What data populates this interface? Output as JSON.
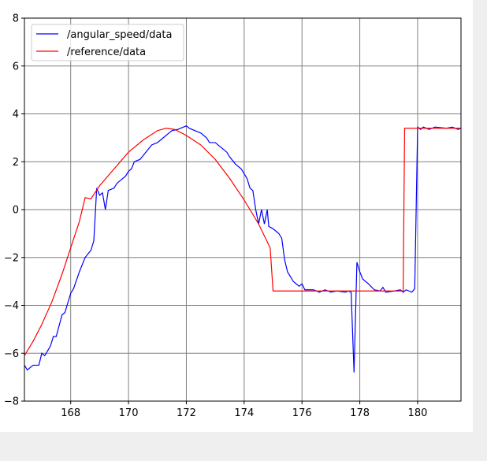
{
  "chart_data": {
    "type": "line",
    "xlim": [
      166.4,
      181.5
    ],
    "ylim": [
      -8,
      8
    ],
    "xticks": [
      168,
      170,
      172,
      174,
      176,
      178,
      180
    ],
    "yticks": [
      {
        "value": -8,
        "label": "−8"
      },
      {
        "value": -6,
        "label": "−6"
      },
      {
        "value": -4,
        "label": "−4"
      },
      {
        "value": -2,
        "label": "−2"
      },
      0,
      2,
      4,
      6,
      8
    ],
    "grid": true,
    "legend": "upper left",
    "series": [
      {
        "name": "/angular_speed/data",
        "color": "#0000ff",
        "x": [
          166.4,
          166.5,
          166.7,
          166.9,
          167.0,
          167.1,
          167.3,
          167.4,
          167.5,
          167.7,
          167.8,
          168.0,
          168.1,
          168.3,
          168.5,
          168.7,
          168.8,
          168.9,
          169.0,
          169.1,
          169.2,
          169.3,
          169.5,
          169.6,
          169.9,
          170.0,
          170.1,
          170.2,
          170.4,
          170.6,
          170.8,
          171.0,
          171.2,
          171.4,
          171.5,
          171.7,
          172.0,
          172.1,
          172.3,
          172.5,
          172.7,
          172.8,
          173.0,
          173.2,
          173.4,
          173.5,
          173.7,
          173.9,
          174.1,
          174.2,
          174.3,
          174.4,
          174.5,
          174.6,
          174.7,
          174.8,
          174.85,
          175.0,
          175.2,
          175.3,
          175.4,
          175.5,
          175.7,
          175.9,
          176.0,
          176.1,
          176.4,
          176.6,
          176.8,
          177.0,
          177.2,
          177.5,
          177.6,
          177.7,
          177.8,
          177.9,
          178.0,
          178.1,
          178.3,
          178.5,
          178.7,
          178.8,
          178.9,
          179.2,
          179.4,
          179.5,
          179.6,
          179.8,
          179.9,
          180.0,
          180.1,
          180.2,
          180.4,
          180.6,
          181.0,
          181.2,
          181.4,
          181.5
        ],
        "values": [
          -6.5,
          -6.7,
          -6.5,
          -6.5,
          -6.0,
          -6.1,
          -5.7,
          -5.3,
          -5.3,
          -4.4,
          -4.3,
          -3.5,
          -3.3,
          -2.6,
          -2.0,
          -1.7,
          -1.3,
          0.9,
          0.6,
          0.7,
          0.0,
          0.8,
          0.9,
          1.1,
          1.4,
          1.6,
          1.7,
          2.0,
          2.1,
          2.4,
          2.7,
          2.8,
          3.0,
          3.2,
          3.3,
          3.35,
          3.5,
          3.4,
          3.3,
          3.2,
          3.0,
          2.8,
          2.8,
          2.6,
          2.4,
          2.2,
          1.9,
          1.7,
          1.3,
          0.9,
          0.8,
          0.0,
          -0.6,
          0.0,
          -0.6,
          0.0,
          -0.7,
          -0.8,
          -1.0,
          -1.2,
          -2.1,
          -2.6,
          -3.0,
          -3.2,
          -3.1,
          -3.35,
          -3.35,
          -3.45,
          -3.35,
          -3.45,
          -3.4,
          -3.45,
          -3.4,
          -3.45,
          -6.8,
          -2.2,
          -2.6,
          -2.9,
          -3.1,
          -3.35,
          -3.4,
          -3.25,
          -3.45,
          -3.4,
          -3.35,
          -3.45,
          -3.35,
          -3.45,
          -3.3,
          3.45,
          3.35,
          3.45,
          3.35,
          3.45,
          3.4,
          3.45,
          3.35,
          3.4
        ]
      },
      {
        "name": "/reference/data",
        "color": "#ff0000",
        "x": [
          166.4,
          166.7,
          167.0,
          167.35,
          167.7,
          168.0,
          168.3,
          168.5,
          168.7,
          169.0,
          169.5,
          170.0,
          170.5,
          171.0,
          171.3,
          171.6,
          172.0,
          172.5,
          173.0,
          173.5,
          174.0,
          174.5,
          174.9,
          175.0,
          179.5,
          179.55,
          180.5,
          181.5
        ],
        "values": [
          -6.1,
          -5.5,
          -4.8,
          -3.85,
          -2.7,
          -1.6,
          -0.5,
          0.5,
          0.45,
          1.0,
          1.7,
          2.4,
          2.9,
          3.3,
          3.4,
          3.35,
          3.1,
          2.7,
          2.1,
          1.3,
          0.4,
          -0.6,
          -1.6,
          -3.4,
          -3.4,
          3.4,
          3.4,
          3.4
        ]
      }
    ]
  }
}
